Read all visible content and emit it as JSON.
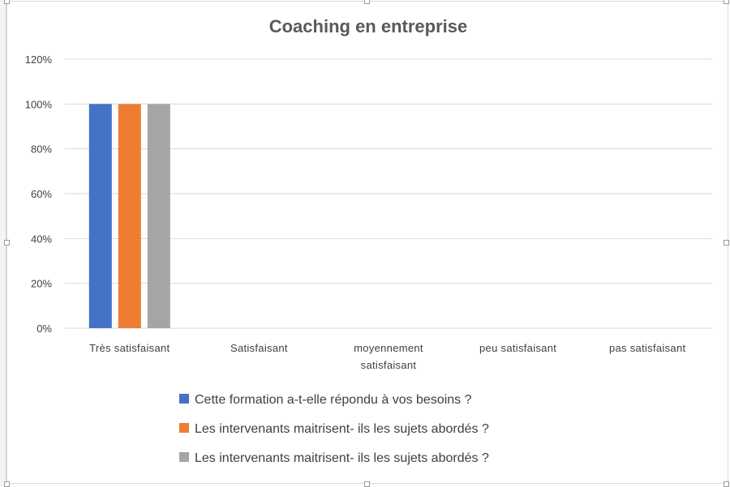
{
  "chart_data": {
    "type": "bar",
    "title": "Coaching en entreprise",
    "categories": [
      "Très satisfaisant",
      "Satisfaisant",
      "moyennement satisfaisant",
      "peu satisfaisant",
      "pas satisfaisant"
    ],
    "category_lines": [
      [
        "Très satisfaisant"
      ],
      [
        "Satisfaisant"
      ],
      [
        "moyennement",
        "satisfaisant"
      ],
      [
        "peu satisfaisant"
      ],
      [
        "pas satisfaisant"
      ]
    ],
    "series": [
      {
        "name": "Cette formation a-t-elle répondu à vos besoins ?",
        "color": "#4472c4",
        "values": [
          1.0,
          0,
          0,
          0,
          0
        ]
      },
      {
        "name": "Les intervenants maitrisent- ils les sujets abordés ?",
        "color": "#ed7d31",
        "values": [
          1.0,
          0,
          0,
          0,
          0
        ]
      },
      {
        "name": "Les intervenants maitrisent- ils les sujets abordés ?",
        "color": "#a5a5a5",
        "values": [
          1.0,
          0,
          0,
          0,
          0
        ]
      }
    ],
    "yticks": [
      "0%",
      "20%",
      "40%",
      "60%",
      "80%",
      "100%",
      "120%"
    ],
    "ylim": [
      0,
      1.2
    ],
    "grid": true,
    "legend_position": "bottom",
    "xlabel": "",
    "ylabel": ""
  }
}
